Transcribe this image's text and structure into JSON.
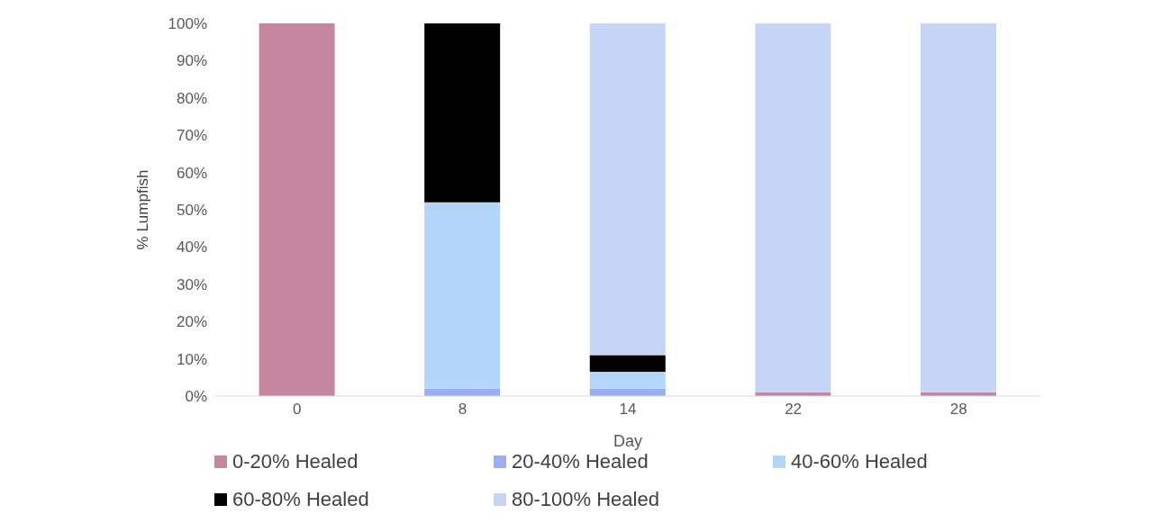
{
  "chart_data": {
    "type": "bar",
    "stacked": true,
    "xlabel": "Day",
    "ylabel": "% Lumpfish",
    "categories": [
      "0",
      "8",
      "14",
      "22",
      "28"
    ],
    "series": [
      {
        "name": "0-20% Healed",
        "color": "#c4879f",
        "values": [
          100,
          0,
          0,
          1,
          1
        ]
      },
      {
        "name": "20-40% Healed",
        "color": "#9aaef0",
        "values": [
          0,
          2,
          2,
          0,
          0
        ]
      },
      {
        "name": "40-60% Healed",
        "color": "#b3d5f8",
        "values": [
          0,
          50,
          4.5,
          0,
          0
        ]
      },
      {
        "name": "60-80% Healed",
        "color": "#000000",
        "values": [
          0,
          48,
          4.5,
          0,
          0
        ]
      },
      {
        "name": "80-100% Healed",
        "color": "#c6d4f6",
        "values": [
          0,
          0,
          89,
          99,
          99
        ]
      }
    ],
    "ylim": [
      0,
      100
    ],
    "yticks": [
      {
        "value": 0,
        "label": "0%"
      },
      {
        "value": 10,
        "label": "10%"
      },
      {
        "value": 20,
        "label": "20%"
      },
      {
        "value": 30,
        "label": "30%"
      },
      {
        "value": 40,
        "label": "40%"
      },
      {
        "value": 50,
        "label": "50%"
      },
      {
        "value": 60,
        "label": "60%"
      },
      {
        "value": 70,
        "label": "70%"
      },
      {
        "value": 80,
        "label": "80%"
      },
      {
        "value": 90,
        "label": "90%"
      },
      {
        "value": 100,
        "label": "100%"
      }
    ],
    "grid": false,
    "legend": "bottom"
  }
}
